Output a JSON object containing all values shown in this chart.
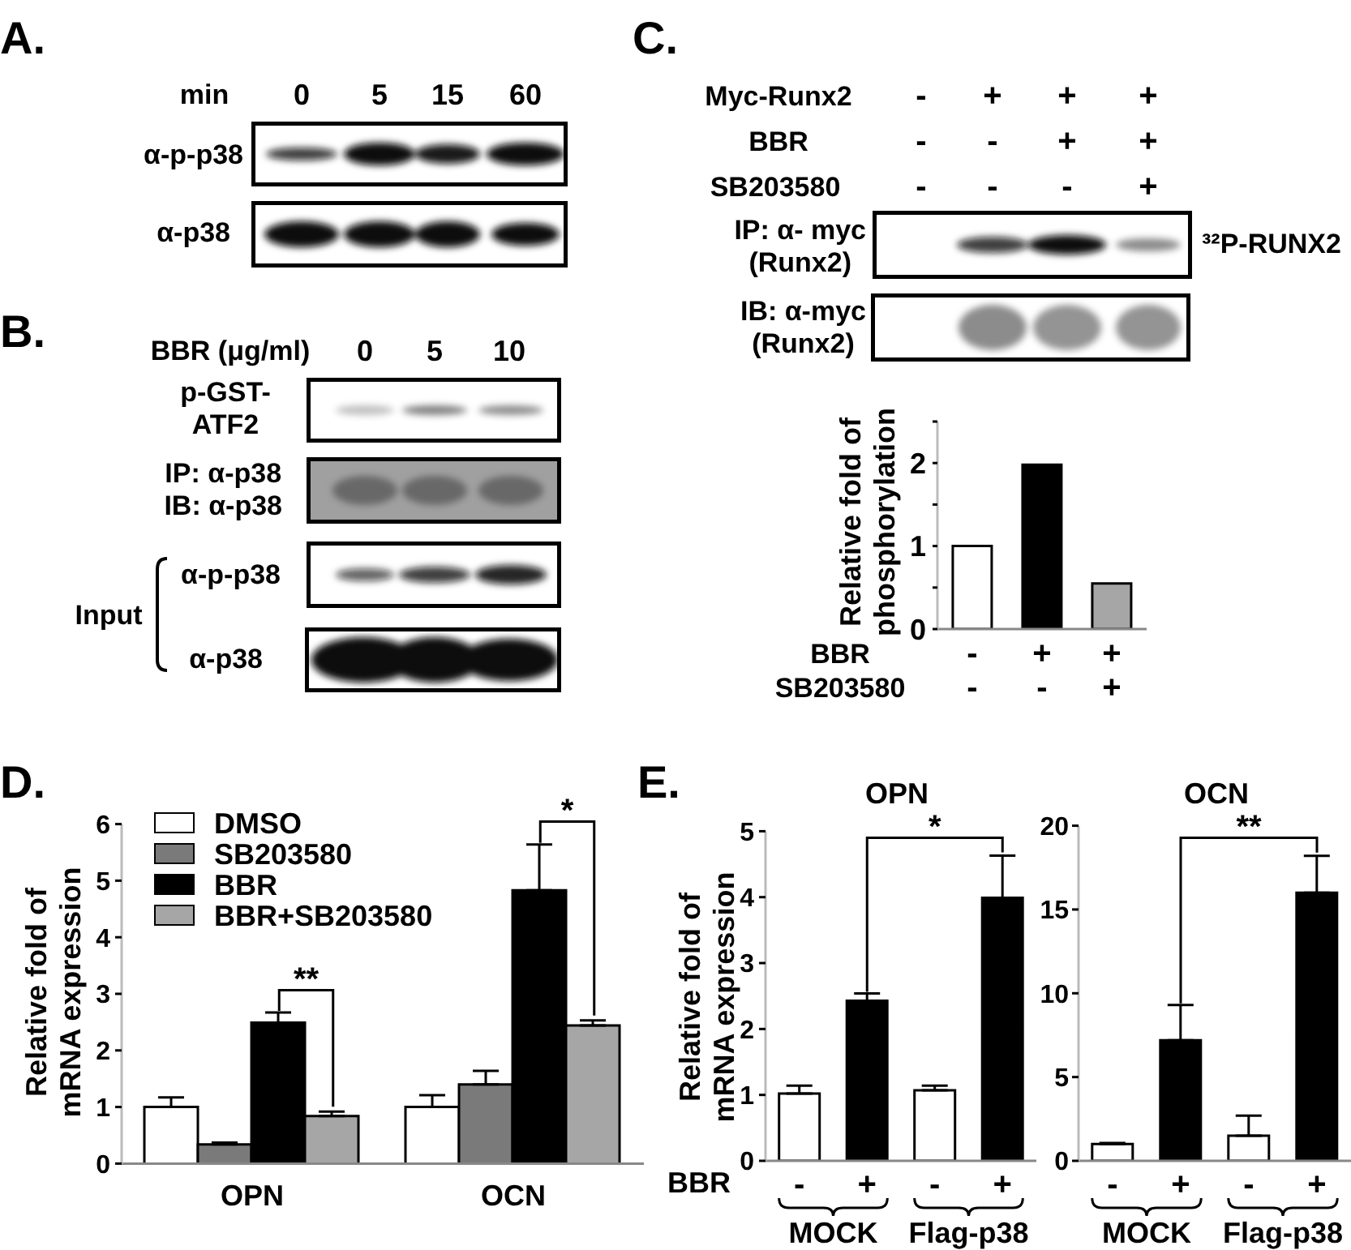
{
  "chart_data": [
    {
      "type": "other",
      "title": "A.",
      "annotations": [
        "min",
        "0",
        "5",
        "15",
        "60",
        "α-p-p38",
        "α-p38"
      ]
    },
    {
      "type": "other",
      "title": "B.",
      "annotations": [
        "BBR (μg/ml)",
        "0",
        "5",
        "10",
        "p-GST-\nATF2",
        "IP: α-p38\nIB: α-p38",
        "α-p-p38",
        "Input",
        "α-p38"
      ]
    },
    {
      "type": "other",
      "title": "C.",
      "annotations": [
        "Myc-Runx2",
        "BBR",
        "SB203580",
        "-",
        "+",
        "+",
        "+",
        "-",
        "-",
        "+",
        "+",
        "-",
        "-",
        "-",
        "+",
        "IP: α- myc\n(Runx2)",
        "³²P-RUNX2",
        "IB: α-myc\n(Runx2)"
      ]
    },
    {
      "type": "bar",
      "categories": [
        null,
        null,
        null
      ],
      "values": [
        1.0,
        1.98,
        0.55
      ],
      "colors": [
        "#ffffff",
        "#000000",
        "#a6a6a6"
      ],
      "ylabel": "Relative fold of\nphosphorylation",
      "ylim": [
        0,
        2.5
      ],
      "yticks": [
        0,
        {
          "value": 0.5,
          "label": null
        },
        1,
        {
          "value": 1.5,
          "label": null
        },
        2,
        {
          "value": 2.5,
          "label": null
        }
      ],
      "annotations": [
        "BBR",
        "-",
        "+",
        "+",
        "SB203580",
        "-",
        "-",
        "+"
      ]
    },
    {
      "type": "bar",
      "title": "D.",
      "categories": [
        "OPN",
        "OCN"
      ],
      "series": [
        {
          "name": "DMSO",
          "color": "#ffffff",
          "values": [
            1.0,
            1.0
          ],
          "errors": [
            [
              1.0,
              1.17
            ],
            [
              1.0,
              1.21
            ]
          ]
        },
        {
          "name": "SB203580",
          "color": "#7a7a7a",
          "values": [
            0.34,
            1.4
          ],
          "errors": [
            [
              0.34,
              0.37
            ],
            [
              1.4,
              1.64
            ]
          ]
        },
        {
          "name": "BBR",
          "color": "#000000",
          "values": [
            2.49,
            4.83
          ],
          "errors": [
            [
              2.49,
              2.67
            ],
            [
              4.83,
              5.64
            ]
          ]
        },
        {
          "name": "BBR+SB203580",
          "color": "#a6a6a6",
          "values": [
            0.84,
            2.44
          ],
          "errors": [
            [
              0.84,
              0.92
            ],
            [
              2.44,
              2.53
            ]
          ]
        }
      ],
      "ylabel": "Relative fold of\nmRNA expression",
      "ylim": [
        0,
        6
      ],
      "yticks": [
        0,
        1,
        2,
        3,
        4,
        5,
        6
      ],
      "legend": "top left",
      "annotations": [
        "**",
        "*"
      ]
    },
    {
      "type": "bar",
      "title": "E.",
      "subtitle": "OPN",
      "categories": [
        "-",
        "+",
        "-",
        "+"
      ],
      "values": [
        1.02,
        2.43,
        1.07,
        3.99
      ],
      "colors": [
        "#ffffff",
        "#000000",
        "#ffffff",
        "#000000"
      ],
      "errors": [
        [
          1.02,
          1.14
        ],
        [
          2.43,
          2.54
        ],
        [
          1.07,
          1.14
        ],
        [
          3.99,
          4.63
        ]
      ],
      "xlabel": "BBR",
      "ylabel": "Relative fold of\nmRNA expression",
      "ylim": [
        0,
        5
      ],
      "yticks": [
        0,
        1,
        2,
        3,
        4,
        5
      ],
      "annotations": [
        "*",
        "MOCK",
        "Flag-p38"
      ]
    },
    {
      "type": "bar",
      "title": "OCN",
      "categories": [
        "-",
        "+",
        "-",
        "+"
      ],
      "values": [
        1.0,
        7.2,
        1.5,
        16.0
      ],
      "colors": [
        "#ffffff",
        "#000000",
        "#ffffff",
        "#000000"
      ],
      "errors": [
        [
          1.0,
          1.06
        ],
        [
          7.2,
          9.3
        ],
        [
          1.5,
          2.7
        ],
        [
          16.0,
          18.2
        ]
      ],
      "ylim": [
        0,
        20
      ],
      "yticks": [
        0,
        5,
        10,
        15,
        20
      ],
      "annotations": [
        "**",
        "MOCK",
        "Flag-p38"
      ]
    }
  ]
}
